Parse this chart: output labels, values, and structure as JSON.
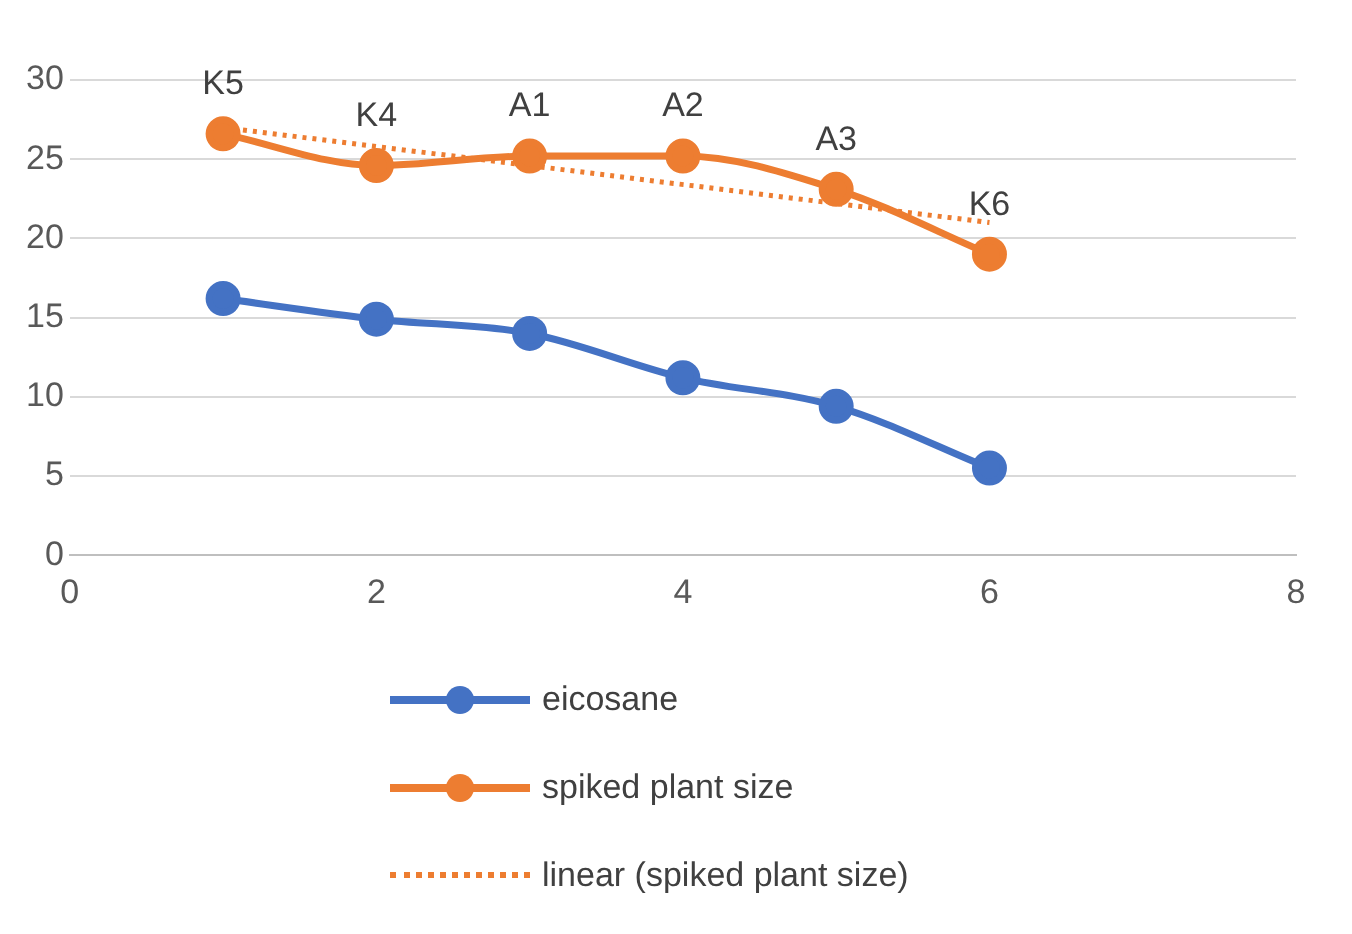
{
  "chart_data": {
    "type": "line",
    "x": [
      1,
      2,
      3,
      4,
      5,
      6
    ],
    "series": [
      {
        "name": "eicosane",
        "color": "#4472c4",
        "values": [
          16.2,
          14.9,
          14.0,
          11.2,
          9.4,
          5.5
        ]
      },
      {
        "name": "spiked plant size",
        "color": "#ed7d31",
        "values": [
          26.6,
          24.6,
          25.2,
          25.2,
          23.1,
          19.0
        ]
      },
      {
        "name": "linear (spiked plant size)",
        "color": "#ed7d31",
        "x": [
          1,
          6
        ],
        "values": [
          27.0,
          21.0
        ],
        "line_style": "dotted",
        "marker": "none"
      }
    ],
    "xlim": [
      0,
      8
    ],
    "xticks": [
      0,
      2,
      4,
      6,
      8
    ],
    "ylim": [
      0,
      30
    ],
    "yticks": [
      0,
      5,
      10,
      15,
      20,
      25,
      30
    ],
    "grid": "y",
    "legend": "bottom",
    "marker": "circle",
    "line_style": "solid",
    "annotations": [
      {
        "text": "K5",
        "x": 1,
        "y": 26.6
      },
      {
        "text": "K4",
        "x": 2,
        "y": 24.6
      },
      {
        "text": "A1",
        "x": 3,
        "y": 25.2
      },
      {
        "text": "A2",
        "x": 4,
        "y": 25.2
      },
      {
        "text": "A3",
        "x": 5,
        "y": 23.1
      },
      {
        "text": "K6",
        "x": 6,
        "y": 19.0
      }
    ]
  }
}
